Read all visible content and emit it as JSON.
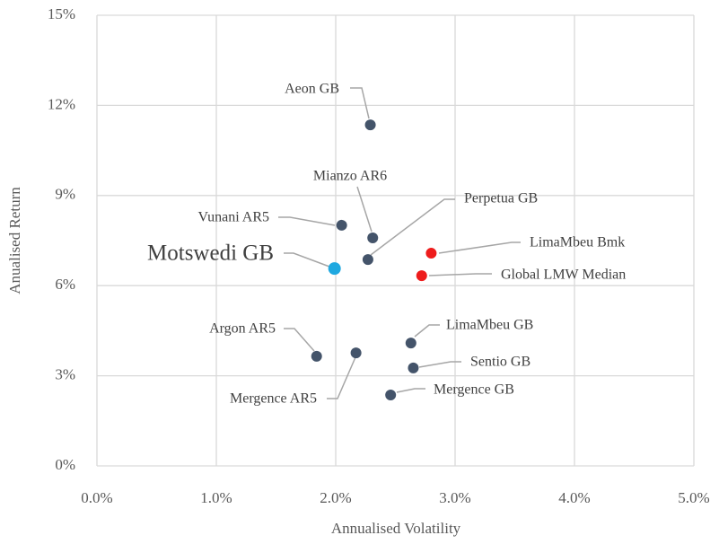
{
  "chart_data": {
    "type": "scatter",
    "x_label": "Annualised Volatility",
    "y_label": "Anualised Return",
    "xlim": [
      0,
      5
    ],
    "ylim": [
      0,
      15
    ],
    "xticks": [
      {
        "value": 0,
        "label": "0.0%"
      },
      {
        "value": 1,
        "label": "1.0%"
      },
      {
        "value": 2,
        "label": "2.0%"
      },
      {
        "value": 3,
        "label": "3.0%"
      },
      {
        "value": 4,
        "label": "4.0%"
      },
      {
        "value": 5,
        "label": "5.0%"
      }
    ],
    "yticks": [
      {
        "value": 0,
        "label": "0%"
      },
      {
        "value": 3,
        "label": "3%"
      },
      {
        "value": 6,
        "label": "6%"
      },
      {
        "value": 9,
        "label": "9%"
      },
      {
        "value": 12,
        "label": "12%"
      },
      {
        "value": 15,
        "label": "15%"
      }
    ],
    "grid": true,
    "points": [
      {
        "name": "Aeon GB",
        "x": 2.29,
        "y": 11.35,
        "color": "#44546a"
      },
      {
        "name": "Mianzo AR6",
        "x": 2.31,
        "y": 7.59,
        "color": "#44546a"
      },
      {
        "name": "Vunani AR5",
        "x": 2.05,
        "y": 8.01,
        "color": "#44546a"
      },
      {
        "name": "Perpetua GB",
        "x": 2.27,
        "y": 6.87,
        "color": "#44546a"
      },
      {
        "name": "Motswedi GB",
        "x": 1.99,
        "y": 6.57,
        "color": "#1fa8e0"
      },
      {
        "name": "LimaMbeu Bmk",
        "x": 2.8,
        "y": 7.08,
        "color": "#ee1c1c"
      },
      {
        "name": "Global LMW Median",
        "x": 2.72,
        "y": 6.33,
        "color": "#ee1c1c"
      },
      {
        "name": "LimaMbeu GB",
        "x": 2.63,
        "y": 4.09,
        "color": "#44546a"
      },
      {
        "name": "Argon AR5",
        "x": 1.84,
        "y": 3.65,
        "color": "#44546a"
      },
      {
        "name": "Mergence AR5",
        "x": 2.17,
        "y": 3.76,
        "color": "#44546a"
      },
      {
        "name": "Sentio GB",
        "x": 2.65,
        "y": 3.26,
        "color": "#44546a"
      },
      {
        "name": "Mergence GB",
        "x": 2.46,
        "y": 2.36,
        "color": "#44546a"
      }
    ]
  }
}
